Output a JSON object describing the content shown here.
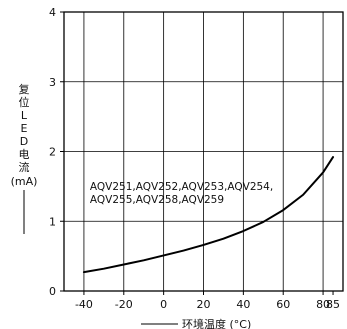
{
  "chart_data": {
    "type": "line",
    "ylabel": "复位LED电流",
    "ylabel_chars": [
      "复",
      "位",
      "L",
      "E",
      "D",
      "电",
      "流"
    ],
    "yunit": "(mA)",
    "xlabel": "环境温度 (°C)",
    "xlim": [
      -50,
      90
    ],
    "ylim": [
      0,
      4
    ],
    "xticks": [
      -40,
      -20,
      0,
      20,
      40,
      60,
      80,
      85
    ],
    "yticks": [
      0,
      1,
      2,
      3,
      4
    ],
    "grid_x": [
      -40,
      -20,
      0,
      20,
      40,
      60,
      80
    ],
    "grid_y": [
      1,
      2,
      3
    ],
    "grid": true,
    "annotation": {
      "lines": [
        "AQV251,AQV252,AQV253,AQV254,",
        "AQV255,AQV258,AQV259"
      ],
      "x": -37,
      "y": 1.45
    },
    "series": [
      {
        "x": [
          -40,
          -30,
          -20,
          -10,
          0,
          10,
          20,
          30,
          40,
          50,
          60,
          70,
          80,
          85
        ],
        "y": [
          0.27,
          0.32,
          0.38,
          0.44,
          0.51,
          0.58,
          0.66,
          0.75,
          0.86,
          0.99,
          1.16,
          1.38,
          1.7,
          1.92
        ]
      }
    ],
    "color": "#000000"
  }
}
